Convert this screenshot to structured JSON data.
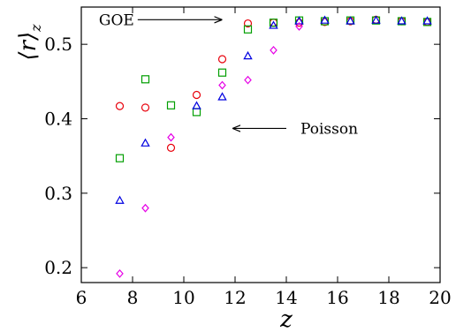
{
  "chart_data": {
    "type": "scatter",
    "xlabel": "z",
    "ylabel": "⟨r⟩",
    "ylabel_subscript": "z",
    "xlim": [
      6,
      20
    ],
    "ylim": [
      0.18,
      0.55
    ],
    "xticks": [
      6,
      8,
      10,
      12,
      14,
      16,
      18,
      20
    ],
    "yticks": [
      0.2,
      0.3,
      0.4,
      0.5
    ],
    "ytick_labels": [
      "0.2",
      "0.3",
      "0.4",
      "0.5"
    ],
    "grid": false,
    "legend": "none",
    "series": [
      {
        "marker": "circle",
        "color": "#e8000b",
        "x": [
          7.5,
          8.5,
          9.5,
          10.5,
          11.5,
          12.5,
          13.5,
          14.5,
          15.5,
          16.5,
          17.5,
          18.5,
          19.5
        ],
        "y": [
          0.417,
          0.415,
          0.361,
          0.432,
          0.48,
          0.528,
          0.529,
          0.529,
          0.53,
          0.531,
          0.533,
          0.531,
          0.53
        ]
      },
      {
        "marker": "square",
        "color": "#009e00",
        "x": [
          7.5,
          8.5,
          9.5,
          10.5,
          11.5,
          12.5,
          13.5,
          14.5,
          15.5,
          16.5,
          17.5,
          18.5,
          19.5
        ],
        "y": [
          0.347,
          0.453,
          0.418,
          0.409,
          0.462,
          0.52,
          0.529,
          0.532,
          0.531,
          0.532,
          0.532,
          0.531,
          0.53
        ]
      },
      {
        "marker": "triangle",
        "color": "#0000e0",
        "x": [
          7.5,
          8.5,
          10.5,
          11.5,
          12.5,
          13.5,
          14.5,
          15.5,
          16.5,
          17.5,
          18.5,
          19.5
        ],
        "y": [
          0.29,
          0.367,
          0.417,
          0.429,
          0.484,
          0.525,
          0.531,
          0.532,
          0.531,
          0.532,
          0.531,
          0.531
        ]
      },
      {
        "marker": "diamond",
        "color": "#e600e6",
        "x": [
          7.5,
          8.5,
          9.5,
          11.5,
          12.5,
          13.5,
          14.5
        ],
        "y": [
          0.192,
          0.28,
          0.375,
          0.445,
          0.452,
          0.492,
          0.524
        ]
      }
    ],
    "annotations": [
      {
        "text": "GOE",
        "x_tail": 8.2,
        "y_tail": 0.533,
        "x_head": 11.5,
        "y_head": 0.533
      },
      {
        "text": "Poisson",
        "x_tail": 14.0,
        "y_tail": 0.387,
        "x_head": 11.9,
        "y_head": 0.387
      }
    ]
  }
}
